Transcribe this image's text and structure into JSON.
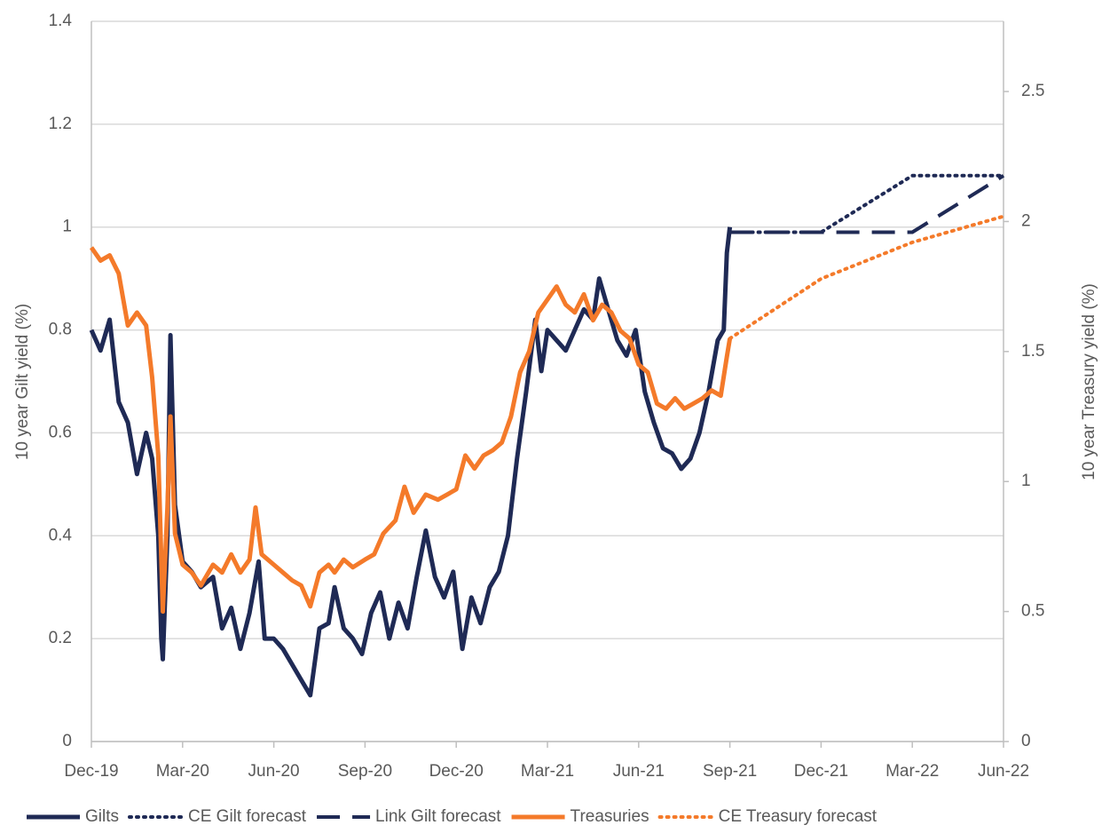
{
  "chart_data": {
    "type": "line",
    "y_label": "10 year Gilt yield (%)",
    "y2_label": "10 year Treasury yield (%)",
    "xlim": [
      0,
      30
    ],
    "xticks": [
      {
        "value": 0,
        "label": "Dec-19"
      },
      {
        "value": 3,
        "label": "Mar-20"
      },
      {
        "value": 6,
        "label": "Jun-20"
      },
      {
        "value": 9,
        "label": "Sep-20"
      },
      {
        "value": 12,
        "label": "Dec-20"
      },
      {
        "value": 15,
        "label": "Mar-21"
      },
      {
        "value": 18,
        "label": "Jun-21"
      },
      {
        "value": 21,
        "label": "Sep-21"
      },
      {
        "value": 24,
        "label": "Dec-21"
      },
      {
        "value": 27,
        "label": "Mar-22"
      },
      {
        "value": 30,
        "label": "Jun-22"
      }
    ],
    "ylim": [
      0,
      1.4
    ],
    "yticks": [
      0,
      0.2,
      0.4,
      0.6,
      0.8,
      1,
      1.2,
      1.4
    ],
    "y2lim": [
      0,
      2.77
    ],
    "y2ticks": [
      0,
      0.5,
      1,
      1.5,
      2,
      2.5
    ],
    "grid": true,
    "legend": "bottom",
    "series": [
      {
        "name": "Gilts",
        "color": "#1f2a55",
        "style": "solid",
        "axis": "y",
        "x": [
          0,
          0.3,
          0.6,
          0.9,
          1.2,
          1.5,
          1.8,
          2.0,
          2.2,
          2.3,
          2.35,
          2.5,
          2.6,
          2.75,
          3.0,
          3.3,
          3.6,
          4.0,
          4.3,
          4.6,
          4.9,
          5.2,
          5.5,
          5.7,
          6.0,
          6.3,
          6.6,
          6.9,
          7.2,
          7.5,
          7.8,
          8.0,
          8.3,
          8.6,
          8.9,
          9.2,
          9.5,
          9.8,
          10.1,
          10.4,
          10.7,
          11.0,
          11.3,
          11.6,
          11.9,
          12.2,
          12.5,
          12.8,
          13.1,
          13.4,
          13.7,
          14.0,
          14.3,
          14.6,
          14.8,
          15.0,
          15.3,
          15.6,
          15.9,
          16.2,
          16.5,
          16.7,
          17.0,
          17.3,
          17.6,
          17.9,
          18.2,
          18.5,
          18.8,
          19.1,
          19.4,
          19.7,
          20.0,
          20.3,
          20.6,
          20.8,
          20.9,
          21.0
        ],
        "values": [
          0.8,
          0.76,
          0.82,
          0.66,
          0.62,
          0.52,
          0.6,
          0.55,
          0.4,
          0.2,
          0.16,
          0.4,
          0.79,
          0.46,
          0.35,
          0.33,
          0.3,
          0.32,
          0.22,
          0.26,
          0.18,
          0.25,
          0.35,
          0.2,
          0.2,
          0.18,
          0.15,
          0.12,
          0.09,
          0.22,
          0.23,
          0.3,
          0.22,
          0.2,
          0.17,
          0.25,
          0.29,
          0.2,
          0.27,
          0.22,
          0.32,
          0.41,
          0.32,
          0.28,
          0.33,
          0.18,
          0.28,
          0.23,
          0.3,
          0.33,
          0.4,
          0.55,
          0.68,
          0.82,
          0.72,
          0.8,
          0.78,
          0.76,
          0.8,
          0.84,
          0.82,
          0.9,
          0.84,
          0.78,
          0.75,
          0.8,
          0.68,
          0.62,
          0.57,
          0.56,
          0.53,
          0.55,
          0.6,
          0.68,
          0.78,
          0.8,
          0.95,
          1.0
        ]
      },
      {
        "name": "CE Gilt forecast",
        "color": "#1f2a55",
        "style": "dotted",
        "axis": "y",
        "x": [
          21,
          24,
          27,
          30
        ],
        "values": [
          0.99,
          0.99,
          1.1,
          1.1
        ]
      },
      {
        "name": "Link Gilt forecast",
        "color": "#1f2a55",
        "style": "dashed",
        "axis": "y",
        "x": [
          21,
          27,
          30
        ],
        "values": [
          0.99,
          0.99,
          1.1
        ]
      },
      {
        "name": "Treasuries",
        "color": "#f47a2a",
        "style": "solid",
        "axis": "y2",
        "x": [
          0,
          0.3,
          0.6,
          0.9,
          1.2,
          1.5,
          1.8,
          2.0,
          2.2,
          2.35,
          2.5,
          2.6,
          2.75,
          3.0,
          3.3,
          3.6,
          4.0,
          4.3,
          4.6,
          4.9,
          5.2,
          5.4,
          5.6,
          6.0,
          6.3,
          6.6,
          6.9,
          7.2,
          7.5,
          7.8,
          8.0,
          8.3,
          8.6,
          9.0,
          9.3,
          9.6,
          10.0,
          10.3,
          10.6,
          11.0,
          11.4,
          11.7,
          12.0,
          12.3,
          12.6,
          12.9,
          13.2,
          13.5,
          13.8,
          14.1,
          14.4,
          14.7,
          15.0,
          15.3,
          15.6,
          15.9,
          16.2,
          16.5,
          16.8,
          17.1,
          17.4,
          17.7,
          18.0,
          18.3,
          18.6,
          18.9,
          19.2,
          19.5,
          19.8,
          20.1,
          20.4,
          20.7,
          20.9,
          21.0
        ],
        "values": [
          1.9,
          1.85,
          1.87,
          1.8,
          1.6,
          1.65,
          1.6,
          1.4,
          1.1,
          0.5,
          0.9,
          1.25,
          0.8,
          0.68,
          0.65,
          0.6,
          0.68,
          0.65,
          0.72,
          0.65,
          0.7,
          0.9,
          0.72,
          0.68,
          0.65,
          0.62,
          0.6,
          0.52,
          0.65,
          0.68,
          0.65,
          0.7,
          0.67,
          0.7,
          0.72,
          0.8,
          0.85,
          0.98,
          0.88,
          0.95,
          0.93,
          0.95,
          0.97,
          1.1,
          1.05,
          1.1,
          1.12,
          1.15,
          1.25,
          1.42,
          1.5,
          1.65,
          1.7,
          1.75,
          1.68,
          1.65,
          1.72,
          1.62,
          1.68,
          1.65,
          1.58,
          1.55,
          1.45,
          1.42,
          1.3,
          1.28,
          1.32,
          1.28,
          1.3,
          1.32,
          1.35,
          1.33,
          1.48,
          1.55
        ]
      },
      {
        "name": "CE Treasury forecast",
        "color": "#f47a2a",
        "style": "dotted",
        "axis": "y2",
        "x": [
          21,
          24,
          27,
          30
        ],
        "values": [
          1.55,
          1.78,
          1.92,
          2.02
        ]
      }
    ]
  }
}
